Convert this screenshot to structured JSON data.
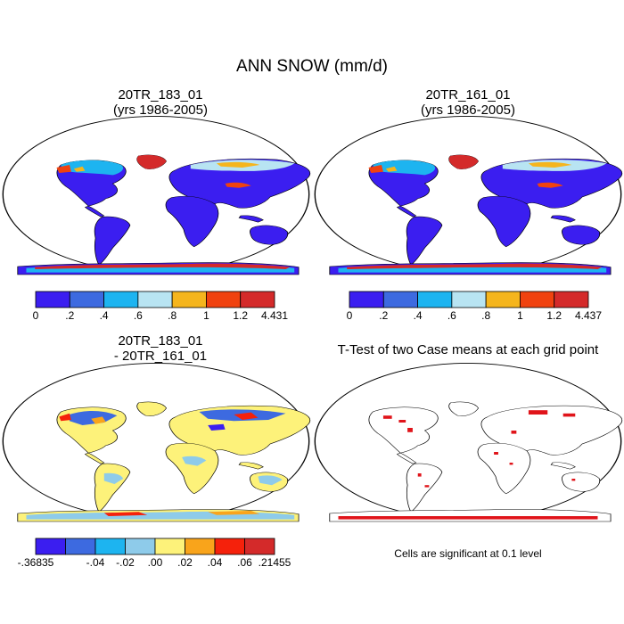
{
  "figure": {
    "title": "ANN SNOW (mm/d)"
  },
  "panels": [
    {
      "id": "case1",
      "title_line1": "20TR_183_01",
      "title_line2": "(yrs 1986-2005)",
      "colorbar": {
        "colors": [
          "#3b1ef0",
          "#3d6ae0",
          "#1db4f0",
          "#b8e4f2",
          "#f5b51d",
          "#f0420f",
          "#d42a2a"
        ],
        "labels": [
          "0",
          ".2",
          ".4",
          ".6",
          ".8",
          "1",
          "1.2",
          "4.431"
        ]
      }
    },
    {
      "id": "case2",
      "title_line1": "20TR_161_01",
      "title_line2": "(yrs 1986-2005)",
      "colorbar": {
        "colors": [
          "#3b1ef0",
          "#3d6ae0",
          "#1db4f0",
          "#b8e4f2",
          "#f5b51d",
          "#f0420f",
          "#d42a2a"
        ],
        "labels": [
          "0",
          ".2",
          ".4",
          ".6",
          ".8",
          "1",
          "1.2",
          "4.437"
        ]
      }
    },
    {
      "id": "diff",
      "title_line1": "20TR_183_01",
      "title_line2": "- 20TR_161_01",
      "colorbar": {
        "colors": [
          "#3b1ef0",
          "#3d6ae0",
          "#1db4f0",
          "#8ecbea",
          "#fdf27a",
          "#f9a41b",
          "#f5210b",
          "#d42a2a"
        ],
        "labels": [
          "-.36835",
          "-.04",
          "-.02",
          ".00",
          ".02",
          ".04",
          ".06",
          ".21455"
        ]
      }
    },
    {
      "id": "ttest",
      "title_line1": "T-Test of two Case means at each grid point",
      "note": "Cells are significant at 0.1 level",
      "signif_color": "#e0141a"
    }
  ],
  "chart_data": [
    {
      "type": "heatmap",
      "title": "20TR_183_01 (yrs 1986-2005)",
      "variable": "ANN SNOW",
      "units": "mm/d",
      "levels": [
        0,
        0.2,
        0.4,
        0.6,
        0.8,
        1,
        1.2
      ],
      "max": 4.431
    },
    {
      "type": "heatmap",
      "title": "20TR_161_01 (yrs 1986-2005)",
      "variable": "ANN SNOW",
      "units": "mm/d",
      "levels": [
        0,
        0.2,
        0.4,
        0.6,
        0.8,
        1,
        1.2
      ],
      "max": 4.437
    },
    {
      "type": "heatmap",
      "title": "20TR_183_01 - 20TR_161_01",
      "variable": "ANN SNOW difference",
      "units": "mm/d",
      "levels": [
        -0.04,
        -0.02,
        0.0,
        0.02,
        0.04,
        0.06
      ],
      "min": -0.36835,
      "max": 0.21455
    },
    {
      "type": "heatmap",
      "title": "T-Test of two Case means at each grid point",
      "significance_level": 0.1
    }
  ]
}
